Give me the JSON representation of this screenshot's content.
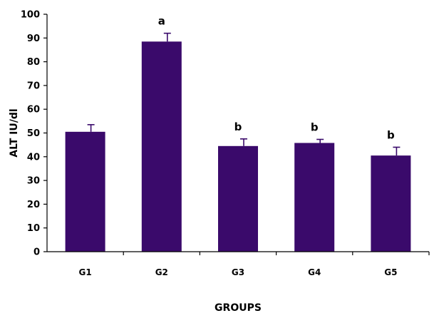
{
  "chart_data": {
    "type": "bar",
    "categories": [
      "G1",
      "G2",
      "G3",
      "G4",
      "G5"
    ],
    "series": [
      {
        "values": [
          50.5,
          88.5,
          44.5,
          45.8,
          40.5
        ],
        "errors": [
          3,
          3.5,
          3,
          1.5,
          3.5
        ]
      }
    ],
    "annotations": [
      "",
      "a",
      "b",
      "b",
      "b"
    ],
    "xlabel": "GROUPS",
    "ylabel": "ALT IU/dl",
    "ylim": [
      0,
      100
    ],
    "yticks": [
      "0",
      "10",
      "20",
      "30",
      "40",
      "50",
      "60",
      "70",
      "80",
      "90",
      "100"
    ],
    "grid": false,
    "bar_color": "#3a0a6b",
    "error_bar_color": "#3a0a6b"
  }
}
